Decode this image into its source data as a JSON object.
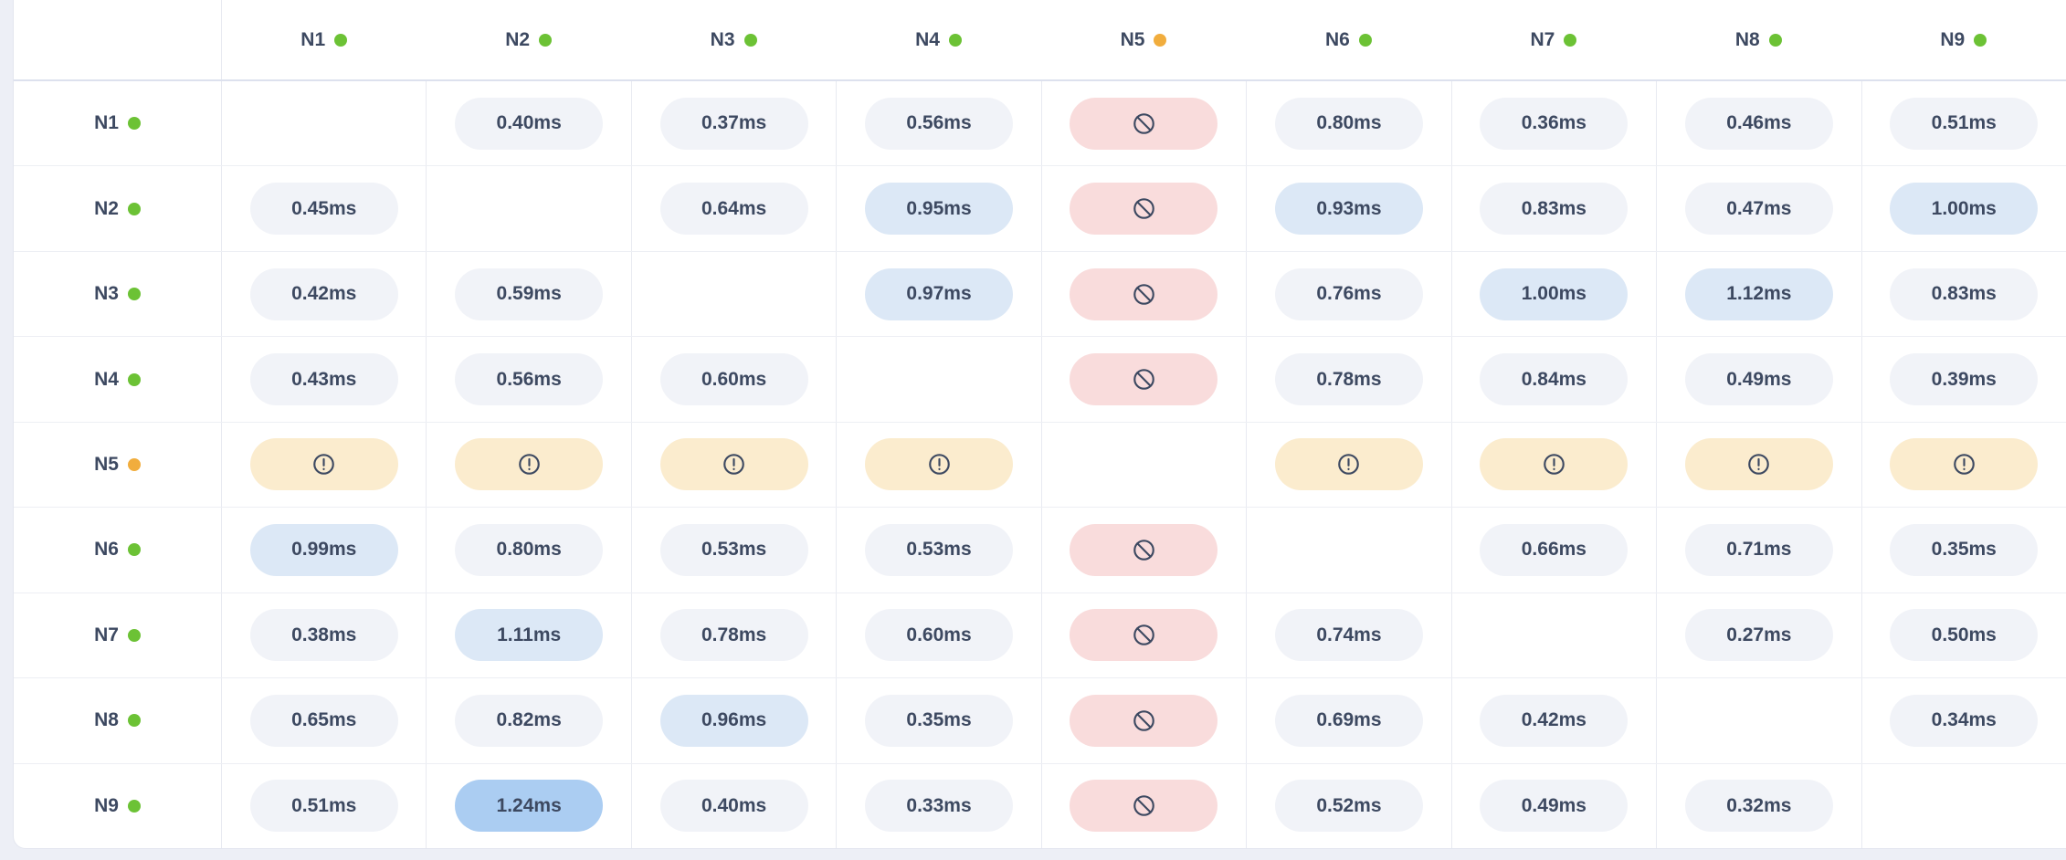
{
  "colors": {
    "page_background": "#edeff6",
    "card_background": "#ffffff",
    "card_border": "#e3e6ef",
    "grid_line": "#e8eaf1",
    "row_line": "#edeff4",
    "header_line": "#dde1ee",
    "text": "#3d4961",
    "badge_default": "#f1f3f8",
    "badge_high": "#dce8f6",
    "badge_max": "#abcdf2",
    "badge_blocked": "#f9dcdc",
    "badge_warning": "#fbecce",
    "status_online": "#6cc235",
    "status_warning": "#f1ad3d"
  },
  "chart_data": {
    "type": "heatmap",
    "title": "",
    "unit": "ms",
    "x_categories": [
      "N1",
      "N2",
      "N3",
      "N4",
      "N5",
      "N6",
      "N7",
      "N8",
      "N9"
    ],
    "y_categories": [
      "N1",
      "N2",
      "N3",
      "N4",
      "N5",
      "N6",
      "N7",
      "N8",
      "N9"
    ],
    "values": [
      [
        null,
        0.4,
        0.37,
        0.56,
        null,
        0.8,
        0.36,
        0.46,
        0.51
      ],
      [
        0.45,
        null,
        0.64,
        0.95,
        null,
        0.93,
        0.83,
        0.47,
        1.0
      ],
      [
        0.42,
        0.59,
        null,
        0.97,
        null,
        0.76,
        1.0,
        1.12,
        0.83
      ],
      [
        0.43,
        0.56,
        0.6,
        null,
        null,
        0.78,
        0.84,
        0.49,
        0.39
      ],
      [
        null,
        null,
        null,
        null,
        null,
        null,
        null,
        null,
        null
      ],
      [
        0.99,
        0.8,
        0.53,
        0.53,
        null,
        null,
        0.66,
        0.71,
        0.35
      ],
      [
        0.38,
        1.11,
        0.78,
        0.6,
        null,
        0.74,
        null,
        0.27,
        0.5
      ],
      [
        0.65,
        0.82,
        0.96,
        0.35,
        null,
        0.69,
        0.42,
        null,
        0.34
      ],
      [
        0.51,
        1.24,
        0.4,
        0.33,
        null,
        0.52,
        0.49,
        0.32,
        null
      ]
    ]
  },
  "matrix": {
    "columns": [
      {
        "label": "N1",
        "status": "online"
      },
      {
        "label": "N2",
        "status": "online"
      },
      {
        "label": "N3",
        "status": "online"
      },
      {
        "label": "N4",
        "status": "online"
      },
      {
        "label": "N5",
        "status": "warning"
      },
      {
        "label": "N6",
        "status": "online"
      },
      {
        "label": "N7",
        "status": "online"
      },
      {
        "label": "N8",
        "status": "online"
      },
      {
        "label": "N9",
        "status": "online"
      }
    ],
    "rows": [
      {
        "label": "N1",
        "status": "online",
        "cells": [
          {
            "type": "self"
          },
          {
            "type": "latency",
            "value": "0.40ms",
            "tier": "default"
          },
          {
            "type": "latency",
            "value": "0.37ms",
            "tier": "default"
          },
          {
            "type": "latency",
            "value": "0.56ms",
            "tier": "default"
          },
          {
            "type": "blocked"
          },
          {
            "type": "latency",
            "value": "0.80ms",
            "tier": "default"
          },
          {
            "type": "latency",
            "value": "0.36ms",
            "tier": "default"
          },
          {
            "type": "latency",
            "value": "0.46ms",
            "tier": "default"
          },
          {
            "type": "latency",
            "value": "0.51ms",
            "tier": "default"
          }
        ]
      },
      {
        "label": "N2",
        "status": "online",
        "cells": [
          {
            "type": "latency",
            "value": "0.45ms",
            "tier": "default"
          },
          {
            "type": "self"
          },
          {
            "type": "latency",
            "value": "0.64ms",
            "tier": "default"
          },
          {
            "type": "latency",
            "value": "0.95ms",
            "tier": "high"
          },
          {
            "type": "blocked"
          },
          {
            "type": "latency",
            "value": "0.93ms",
            "tier": "high"
          },
          {
            "type": "latency",
            "value": "0.83ms",
            "tier": "default"
          },
          {
            "type": "latency",
            "value": "0.47ms",
            "tier": "default"
          },
          {
            "type": "latency",
            "value": "1.00ms",
            "tier": "high"
          }
        ]
      },
      {
        "label": "N3",
        "status": "online",
        "cells": [
          {
            "type": "latency",
            "value": "0.42ms",
            "tier": "default"
          },
          {
            "type": "latency",
            "value": "0.59ms",
            "tier": "default"
          },
          {
            "type": "self"
          },
          {
            "type": "latency",
            "value": "0.97ms",
            "tier": "high"
          },
          {
            "type": "blocked"
          },
          {
            "type": "latency",
            "value": "0.76ms",
            "tier": "default"
          },
          {
            "type": "latency",
            "value": "1.00ms",
            "tier": "high"
          },
          {
            "type": "latency",
            "value": "1.12ms",
            "tier": "high"
          },
          {
            "type": "latency",
            "value": "0.83ms",
            "tier": "default"
          }
        ]
      },
      {
        "label": "N4",
        "status": "online",
        "cells": [
          {
            "type": "latency",
            "value": "0.43ms",
            "tier": "default"
          },
          {
            "type": "latency",
            "value": "0.56ms",
            "tier": "default"
          },
          {
            "type": "latency",
            "value": "0.60ms",
            "tier": "default"
          },
          {
            "type": "self"
          },
          {
            "type": "blocked"
          },
          {
            "type": "latency",
            "value": "0.78ms",
            "tier": "default"
          },
          {
            "type": "latency",
            "value": "0.84ms",
            "tier": "default"
          },
          {
            "type": "latency",
            "value": "0.49ms",
            "tier": "default"
          },
          {
            "type": "latency",
            "value": "0.39ms",
            "tier": "default"
          }
        ]
      },
      {
        "label": "N5",
        "status": "warning",
        "cells": [
          {
            "type": "warning"
          },
          {
            "type": "warning"
          },
          {
            "type": "warning"
          },
          {
            "type": "warning"
          },
          {
            "type": "self"
          },
          {
            "type": "warning"
          },
          {
            "type": "warning"
          },
          {
            "type": "warning"
          },
          {
            "type": "warning"
          }
        ]
      },
      {
        "label": "N6",
        "status": "online",
        "cells": [
          {
            "type": "latency",
            "value": "0.99ms",
            "tier": "high"
          },
          {
            "type": "latency",
            "value": "0.80ms",
            "tier": "default"
          },
          {
            "type": "latency",
            "value": "0.53ms",
            "tier": "default"
          },
          {
            "type": "latency",
            "value": "0.53ms",
            "tier": "default"
          },
          {
            "type": "blocked"
          },
          {
            "type": "self"
          },
          {
            "type": "latency",
            "value": "0.66ms",
            "tier": "default"
          },
          {
            "type": "latency",
            "value": "0.71ms",
            "tier": "default"
          },
          {
            "type": "latency",
            "value": "0.35ms",
            "tier": "default"
          }
        ]
      },
      {
        "label": "N7",
        "status": "online",
        "cells": [
          {
            "type": "latency",
            "value": "0.38ms",
            "tier": "default"
          },
          {
            "type": "latency",
            "value": "1.11ms",
            "tier": "high"
          },
          {
            "type": "latency",
            "value": "0.78ms",
            "tier": "default"
          },
          {
            "type": "latency",
            "value": "0.60ms",
            "tier": "default"
          },
          {
            "type": "blocked"
          },
          {
            "type": "latency",
            "value": "0.74ms",
            "tier": "default"
          },
          {
            "type": "self"
          },
          {
            "type": "latency",
            "value": "0.27ms",
            "tier": "default"
          },
          {
            "type": "latency",
            "value": "0.50ms",
            "tier": "default"
          }
        ]
      },
      {
        "label": "N8",
        "status": "online",
        "cells": [
          {
            "type": "latency",
            "value": "0.65ms",
            "tier": "default"
          },
          {
            "type": "latency",
            "value": "0.82ms",
            "tier": "default"
          },
          {
            "type": "latency",
            "value": "0.96ms",
            "tier": "high"
          },
          {
            "type": "latency",
            "value": "0.35ms",
            "tier": "default"
          },
          {
            "type": "blocked"
          },
          {
            "type": "latency",
            "value": "0.69ms",
            "tier": "default"
          },
          {
            "type": "latency",
            "value": "0.42ms",
            "tier": "default"
          },
          {
            "type": "self"
          },
          {
            "type": "latency",
            "value": "0.34ms",
            "tier": "default"
          }
        ]
      },
      {
        "label": "N9",
        "status": "online",
        "cells": [
          {
            "type": "latency",
            "value": "0.51ms",
            "tier": "default"
          },
          {
            "type": "latency",
            "value": "1.24ms",
            "tier": "max"
          },
          {
            "type": "latency",
            "value": "0.40ms",
            "tier": "default"
          },
          {
            "type": "latency",
            "value": "0.33ms",
            "tier": "default"
          },
          {
            "type": "blocked"
          },
          {
            "type": "latency",
            "value": "0.52ms",
            "tier": "default"
          },
          {
            "type": "latency",
            "value": "0.49ms",
            "tier": "default"
          },
          {
            "type": "latency",
            "value": "0.32ms",
            "tier": "default"
          },
          {
            "type": "self"
          }
        ]
      }
    ]
  }
}
